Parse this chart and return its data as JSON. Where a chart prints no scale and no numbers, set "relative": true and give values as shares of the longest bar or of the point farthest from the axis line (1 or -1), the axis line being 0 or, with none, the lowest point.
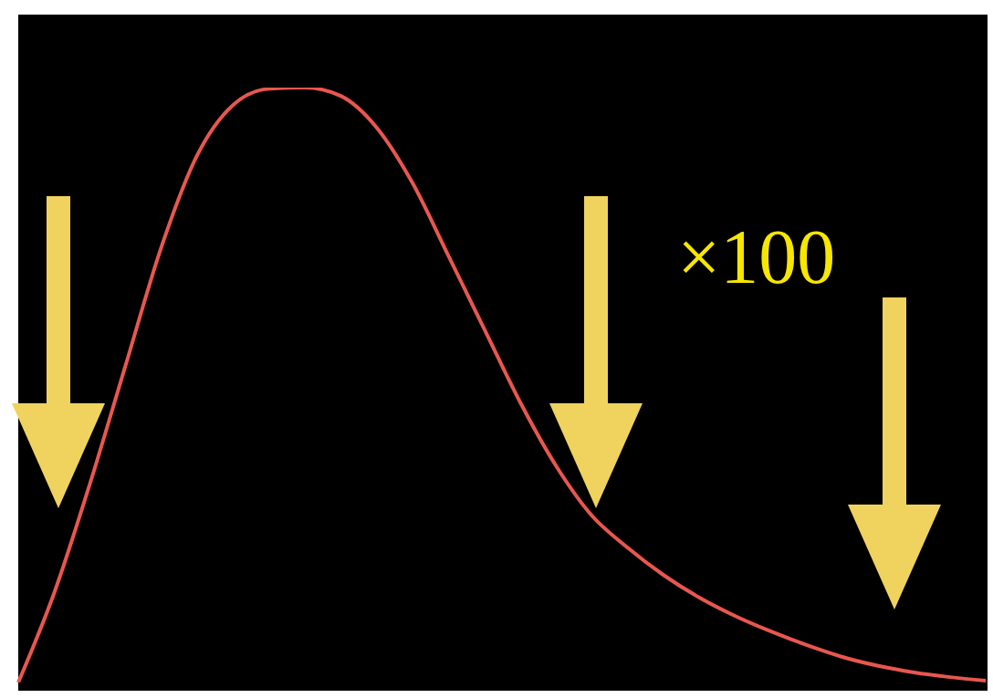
{
  "chart_data": {
    "type": "line",
    "relative": true,
    "categories": [
      null,
      null,
      null,
      null,
      null,
      null,
      null,
      null,
      null,
      null,
      null,
      null,
      null,
      null,
      null,
      null,
      null,
      null,
      null,
      null,
      null,
      null,
      null,
      null,
      null,
      null,
      null,
      null
    ],
    "series": [
      {
        "color": "#e8574f",
        "values": [
          0,
          0.15,
          0.334,
          0.534,
          0.733,
          0.887,
          0.971,
          0.998,
          1,
          0.986,
          0.933,
          0.84,
          0.718,
          0.595,
          0.472,
          0.365,
          0.281,
          0.227,
          0.181,
          0.143,
          0.112,
          0.086,
          0.063,
          0.043,
          0.028,
          0.017,
          0.009,
          0.003
        ]
      }
    ],
    "annotations": [
      "×100"
    ],
    "grid": false,
    "legend": false,
    "marker": "none",
    "line_style": "solid"
  }
}
